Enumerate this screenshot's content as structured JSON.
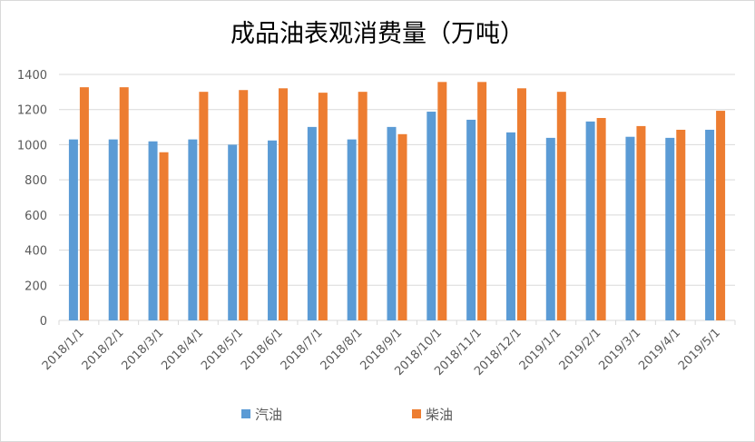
{
  "chart_data": {
    "type": "bar",
    "title": "成品油表观消费量（万吨）",
    "xlabel": "",
    "ylabel": "",
    "ylim": [
      0,
      1400
    ],
    "yticks": [
      0,
      200,
      400,
      600,
      800,
      1000,
      1200,
      1400
    ],
    "grid": true,
    "legend_position": "bottom",
    "categories": [
      "2018/1/1",
      "2018/2/1",
      "2018/3/1",
      "2018/4/1",
      "2018/5/1",
      "2018/6/1",
      "2018/7/1",
      "2018/8/1",
      "2018/9/1",
      "2018/10/1",
      "2018/11/1",
      "2018/12/1",
      "2019/1/1",
      "2019/2/1",
      "2019/3/1",
      "2019/4/1",
      "2019/5/1"
    ],
    "series": [
      {
        "name": "汽油",
        "color": "#5b9bd5",
        "values": [
          1030,
          1030,
          1019,
          1030,
          1000,
          1024,
          1101,
          1030,
          1101,
          1188,
          1142,
          1070,
          1039,
          1132,
          1045,
          1039,
          1085
        ]
      },
      {
        "name": "柴油",
        "color": "#ed7d31",
        "values": [
          1327,
          1327,
          957,
          1301,
          1311,
          1321,
          1296,
          1301,
          1060,
          1357,
          1357,
          1321,
          1301,
          1152,
          1106,
          1085,
          1193
        ]
      }
    ]
  }
}
